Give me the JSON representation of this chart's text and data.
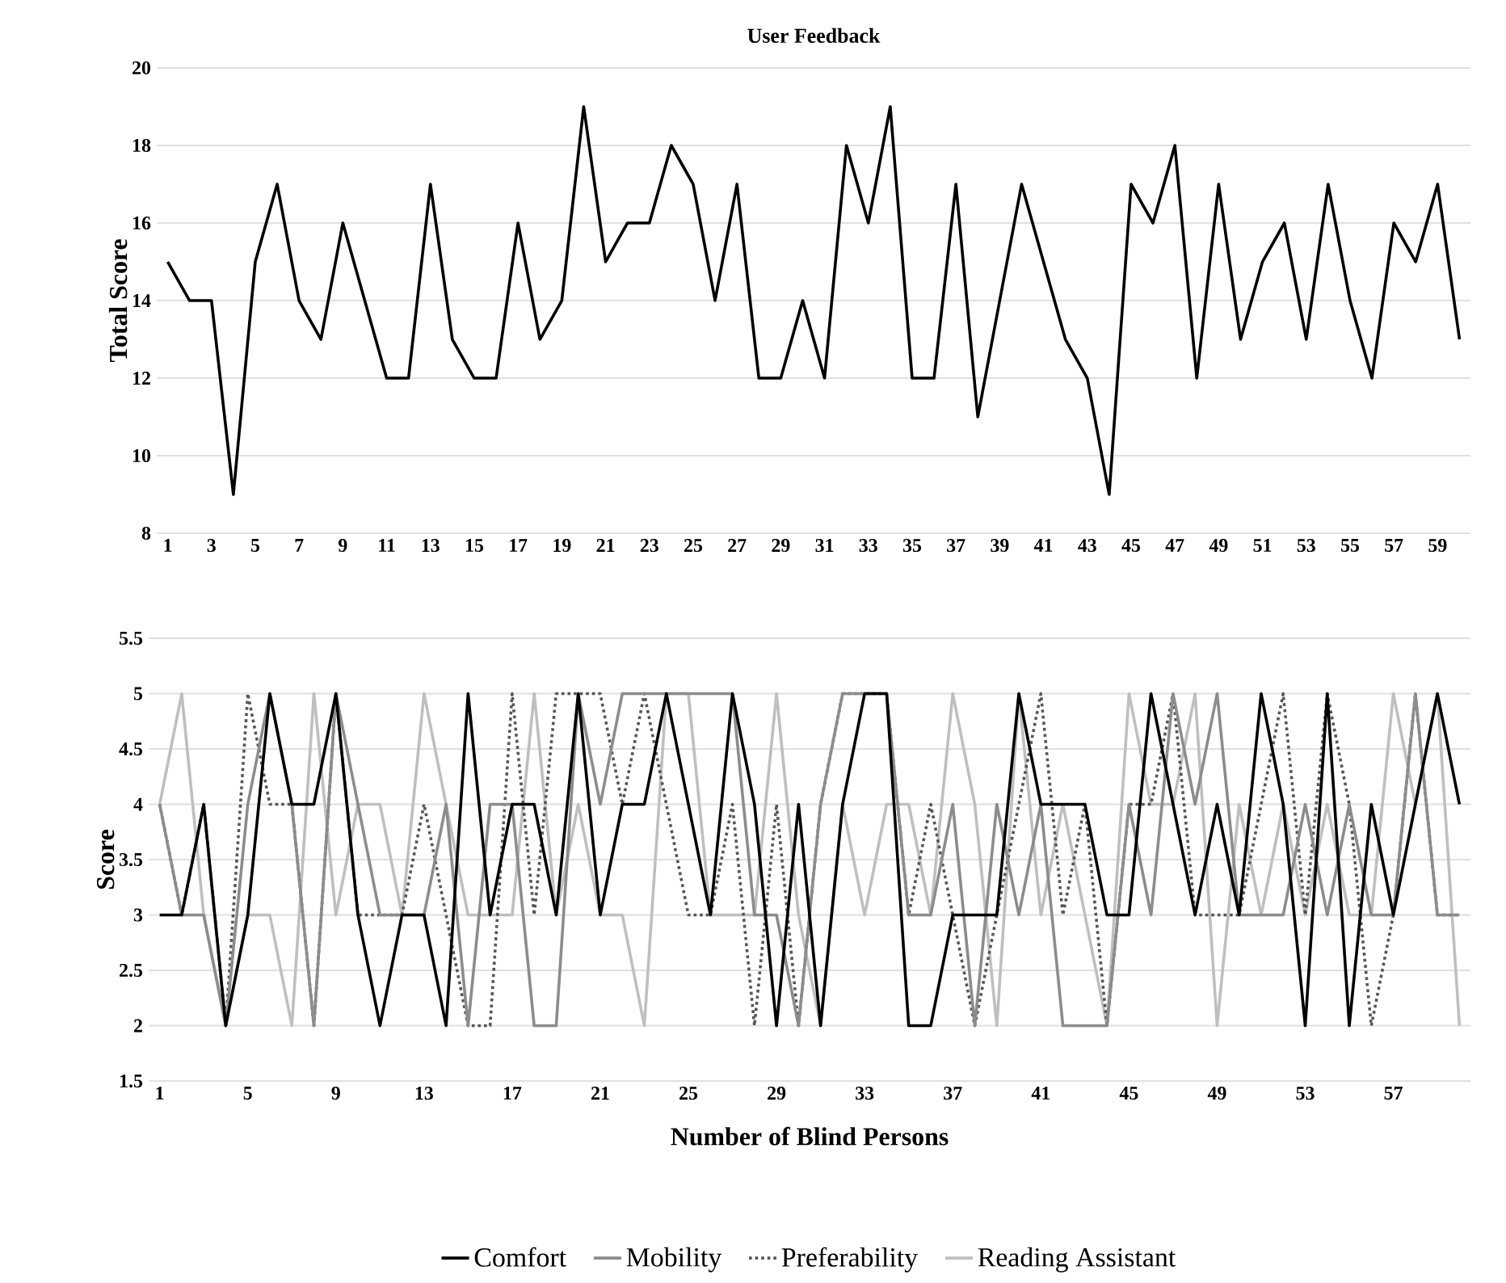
{
  "chart_data": [
    {
      "type": "line",
      "title": "User Feedback",
      "ylabel": "Total Score",
      "categories": [
        "1",
        null,
        "3",
        null,
        "5",
        null,
        "7",
        null,
        "9",
        null,
        "11",
        null,
        "13",
        null,
        "15",
        null,
        "17",
        null,
        "19",
        null,
        "21",
        null,
        "23",
        null,
        "25",
        null,
        "27",
        null,
        "29",
        null,
        "31",
        null,
        "33",
        null,
        "35",
        null,
        "37",
        null,
        "39",
        null,
        "41",
        null,
        "43",
        null,
        "45",
        null,
        "47",
        null,
        "49",
        null,
        "51",
        null,
        "53",
        null,
        "55",
        null,
        "57",
        null,
        "59",
        null
      ],
      "values": [
        15,
        14,
        14,
        9,
        15,
        17,
        14,
        13,
        16,
        14,
        12,
        12,
        17,
        13,
        12,
        12,
        16,
        13,
        14,
        19,
        15,
        16,
        16,
        18,
        17,
        14,
        17,
        12,
        12,
        14,
        12,
        18,
        16,
        19,
        12,
        12,
        17,
        11,
        14,
        17,
        15,
        13,
        12,
        9,
        17,
        16,
        18,
        12,
        17,
        13,
        15,
        16,
        13,
        17,
        14,
        12,
        16,
        15,
        17,
        13
      ],
      "color": "#000000",
      "ylim": [
        8,
        20
      ],
      "yticks": [
        8,
        10,
        12,
        14,
        16,
        18,
        20
      ],
      "grid": "y"
    },
    {
      "type": "line",
      "xlabel": "Number of Blind Persons",
      "ylabel": "Score",
      "categories": [
        "1",
        null,
        null,
        null,
        "5",
        null,
        null,
        null,
        "9",
        null,
        null,
        null,
        "13",
        null,
        null,
        null,
        "17",
        null,
        null,
        null,
        "21",
        null,
        null,
        null,
        "25",
        null,
        null,
        null,
        "29",
        null,
        null,
        null,
        "33",
        null,
        null,
        null,
        "37",
        null,
        null,
        null,
        "41",
        null,
        null,
        null,
        "45",
        null,
        null,
        null,
        "49",
        null,
        null,
        null,
        "53",
        null,
        null,
        null,
        "57",
        null,
        null,
        null
      ],
      "series": [
        {
          "name": "Comfort",
          "color": "#000000",
          "line_style": "solid",
          "values": [
            3,
            3,
            4,
            2,
            3,
            5,
            4,
            4,
            5,
            3,
            2,
            3,
            3,
            2,
            5,
            3,
            4,
            4,
            3,
            5,
            3,
            4,
            4,
            5,
            4,
            3,
            5,
            4,
            2,
            4,
            2,
            4,
            5,
            5,
            2,
            2,
            3,
            3,
            3,
            5,
            4,
            4,
            4,
            3,
            3,
            5,
            4,
            3,
            4,
            3,
            5,
            4,
            2,
            5,
            2,
            4,
            3,
            4,
            5,
            4
          ]
        },
        {
          "name": "Mobility",
          "color": "#8c8c8c",
          "line_style": "solid",
          "values": [
            4,
            3,
            3,
            2,
            4,
            5,
            4,
            2,
            5,
            4,
            3,
            3,
            3,
            4,
            2,
            4,
            4,
            2,
            2,
            5,
            4,
            5,
            5,
            5,
            5,
            5,
            5,
            3,
            3,
            2,
            4,
            5,
            5,
            5,
            3,
            3,
            4,
            2,
            4,
            3,
            4,
            2,
            2,
            2,
            4,
            3,
            5,
            4,
            5,
            3,
            3,
            3,
            4,
            3,
            4,
            3,
            3,
            5,
            3,
            3
          ]
        },
        {
          "name": "Preferability",
          "color": "#555555",
          "line_style": "dotted",
          "values": [
            4,
            3,
            4,
            2,
            5,
            4,
            4,
            2,
            5,
            3,
            3,
            3,
            4,
            3,
            2,
            2,
            5,
            3,
            5,
            5,
            5,
            4,
            5,
            4,
            3,
            3,
            4,
            2,
            4,
            2,
            4,
            5,
            5,
            5,
            3,
            4,
            3,
            2,
            3,
            4,
            5,
            3,
            4,
            2,
            4,
            4,
            5,
            3,
            3,
            3,
            4,
            5,
            3,
            5,
            4,
            2,
            3,
            5,
            3,
            3
          ]
        },
        {
          "name": "Reading Assistant",
          "color": "#bfbfbf",
          "line_style": "solid",
          "values": [
            4,
            5,
            3,
            2,
            3,
            3,
            2,
            5,
            3,
            4,
            4,
            3,
            5,
            4,
            3,
            3,
            3,
            5,
            3,
            4,
            3,
            3,
            2,
            5,
            5,
            3,
            3,
            3,
            5,
            3,
            2,
            4,
            3,
            4,
            4,
            3,
            5,
            4,
            2,
            5,
            3,
            4,
            3,
            2,
            5,
            4,
            4,
            5,
            2,
            4,
            3,
            4,
            3,
            4,
            3,
            3,
            5,
            4,
            5,
            2
          ]
        }
      ],
      "ylim": [
        1.5,
        5.5
      ],
      "yticks": [
        1.5,
        2,
        2.5,
        3,
        3.5,
        4,
        4.5,
        5,
        5.5
      ],
      "grid": "y",
      "legend": "bottom"
    }
  ]
}
